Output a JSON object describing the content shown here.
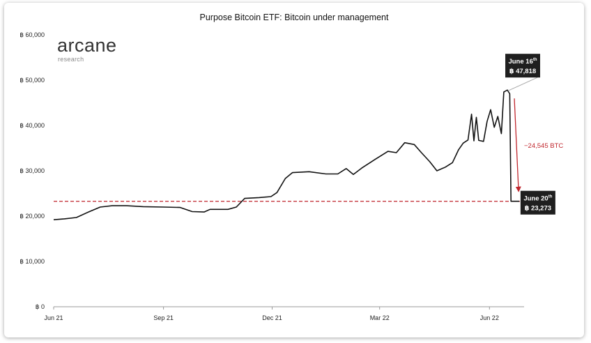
{
  "chart_data": {
    "type": "line",
    "title": "Purpose Bitcoin ETF: Bitcoin under management",
    "xlabel": "",
    "ylabel": "",
    "y_tick_labels": [
      "฿ 0",
      "฿ 10,000",
      "฿ 20,000",
      "฿ 30,000",
      "฿ 40,000",
      "฿ 50,000",
      "฿ 60,000"
    ],
    "x_tick_labels": [
      "Jun 21",
      "Sep 21",
      "Dec 21",
      "Mar 22",
      "Jun 22"
    ],
    "ylim": [
      0,
      60000
    ],
    "xlim": [
      "2021-06-01",
      "2022-06-30"
    ],
    "grid": false,
    "reference_line": {
      "y": 23273,
      "style": "dashed",
      "color": "#c0262d"
    },
    "series": [
      {
        "color": "#111111",
        "points": [
          [
            "2021-06-01",
            19200
          ],
          [
            "2021-06-10",
            19400
          ],
          [
            "2021-06-20",
            19700
          ],
          [
            "2021-07-01",
            21000
          ],
          [
            "2021-07-10",
            22000
          ],
          [
            "2021-07-20",
            22300
          ],
          [
            "2021-08-01",
            22300
          ],
          [
            "2021-08-15",
            22100
          ],
          [
            "2021-09-01",
            22000
          ],
          [
            "2021-09-15",
            21900
          ],
          [
            "2021-09-25",
            21000
          ],
          [
            "2021-10-05",
            20900
          ],
          [
            "2021-10-10",
            21500
          ],
          [
            "2021-10-25",
            21500
          ],
          [
            "2021-11-01",
            22000
          ],
          [
            "2021-11-08",
            23900
          ],
          [
            "2021-11-20",
            24100
          ],
          [
            "2021-11-30",
            24300
          ],
          [
            "2021-12-05",
            25200
          ],
          [
            "2021-12-12",
            28300
          ],
          [
            "2021-12-18",
            29600
          ],
          [
            "2022-01-01",
            29800
          ],
          [
            "2022-01-15",
            29300
          ],
          [
            "2022-01-25",
            29300
          ],
          [
            "2022-02-01",
            30500
          ],
          [
            "2022-02-07",
            29200
          ],
          [
            "2022-02-14",
            30600
          ],
          [
            "2022-02-25",
            32500
          ],
          [
            "2022-03-08",
            34300
          ],
          [
            "2022-03-15",
            34000
          ],
          [
            "2022-03-22",
            36200
          ],
          [
            "2022-03-30",
            35800
          ],
          [
            "2022-04-05",
            34000
          ],
          [
            "2022-04-12",
            32000
          ],
          [
            "2022-04-18",
            30000
          ],
          [
            "2022-04-25",
            30800
          ],
          [
            "2022-05-01",
            31800
          ],
          [
            "2022-05-06",
            34600
          ],
          [
            "2022-05-10",
            36100
          ],
          [
            "2022-05-14",
            36800
          ],
          [
            "2022-05-17",
            42500
          ],
          [
            "2022-05-19",
            36600
          ],
          [
            "2022-05-21",
            41800
          ],
          [
            "2022-05-23",
            36700
          ],
          [
            "2022-05-27",
            36500
          ],
          [
            "2022-05-30",
            40900
          ],
          [
            "2022-06-02",
            43500
          ],
          [
            "2022-06-05",
            39600
          ],
          [
            "2022-06-08",
            42000
          ],
          [
            "2022-06-11",
            38200
          ],
          [
            "2022-06-13",
            47400
          ],
          [
            "2022-06-16",
            47818
          ],
          [
            "2022-06-18",
            47000
          ],
          [
            "2022-06-19",
            23273
          ],
          [
            "2022-06-20",
            23273
          ],
          [
            "2022-06-26",
            23273
          ]
        ]
      }
    ],
    "annotations": [
      {
        "label": "June 16",
        "sup": "th",
        "value_text": "฿ 47,818",
        "x": "2022-06-16",
        "y": 47818
      },
      {
        "label": "June 20",
        "sup": "th",
        "value_text": "฿ 23,273",
        "x": "2022-06-20",
        "y": 23273
      },
      {
        "label": "−24,545 BTC"
      }
    ]
  },
  "logo": {
    "name": "arcane",
    "sub": "research"
  }
}
